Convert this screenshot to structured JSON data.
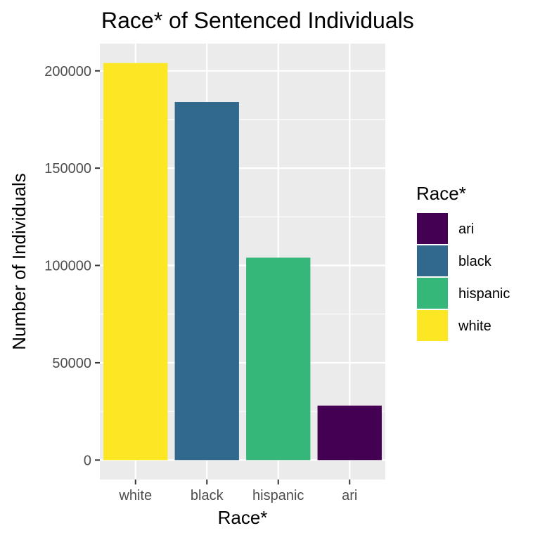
{
  "chart_data": {
    "type": "bar",
    "title": "Race* of Sentenced Individuals",
    "xlabel": "Race*",
    "ylabel": "Number of Individuals",
    "categories": [
      "white",
      "black",
      "hispanic",
      "ari"
    ],
    "values": [
      204000,
      184000,
      104000,
      28000
    ],
    "bar_colors": [
      "#FDE725",
      "#31688E",
      "#35B779",
      "#440154"
    ],
    "ylim": [
      -10000,
      214000
    ],
    "yticks": [
      0,
      50000,
      100000,
      150000,
      200000
    ],
    "ytick_labels": [
      "0",
      "50000",
      "100000",
      "150000",
      "200000"
    ],
    "grid": true,
    "panel_background": "#EBEBEB",
    "legend": {
      "title": "Race*",
      "position": "right",
      "entries": [
        {
          "label": "ari",
          "color": "#440154"
        },
        {
          "label": "black",
          "color": "#31688E"
        },
        {
          "label": "hispanic",
          "color": "#35B779"
        },
        {
          "label": "white",
          "color": "#FDE725"
        }
      ]
    }
  }
}
